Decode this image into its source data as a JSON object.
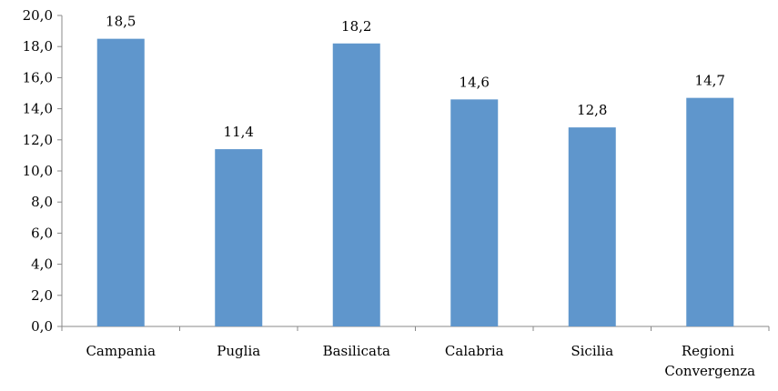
{
  "chart_data": {
    "type": "bar",
    "categories": [
      "Campania",
      "Puglia",
      "Basilicata",
      "Calabria",
      "Sicilia",
      "Regioni Convergenza"
    ],
    "values": [
      18.5,
      11.4,
      18.2,
      14.6,
      12.8,
      14.7
    ],
    "value_labels": [
      "18,5",
      "11,4",
      "18,2",
      "14,6",
      "12,8",
      "14,7"
    ],
    "color": "#5f96cc",
    "ylim": [
      0,
      20
    ],
    "yticks": [
      {
        "value": 0,
        "label": "0,0"
      },
      {
        "value": 2,
        "label": "2,0"
      },
      {
        "value": 4,
        "label": "4,0"
      },
      {
        "value": 6,
        "label": "6,0"
      },
      {
        "value": 8,
        "label": "8,0"
      },
      {
        "value": 10,
        "label": "10,0"
      },
      {
        "value": 12,
        "label": "12,0"
      },
      {
        "value": 14,
        "label": "14,0"
      },
      {
        "value": 16,
        "label": "16,0"
      },
      {
        "value": 18,
        "label": "18,0"
      },
      {
        "value": 20,
        "label": "20,0"
      }
    ],
    "grid": false
  }
}
